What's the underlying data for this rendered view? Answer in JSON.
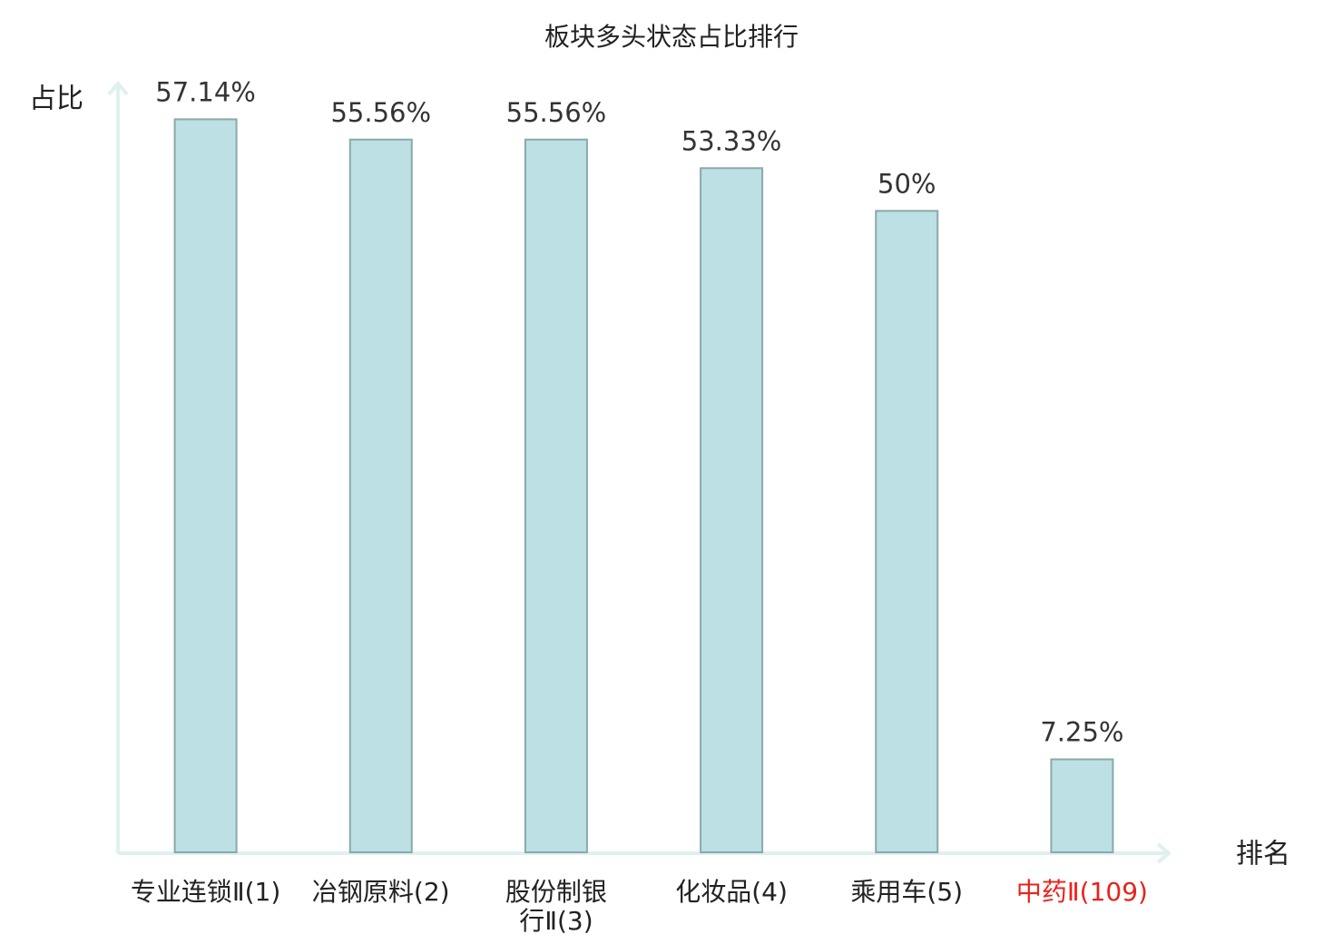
{
  "chart_data": {
    "type": "bar",
    "title": "板块多头状态占比排行",
    "y_label": "占比",
    "x_label": "排名",
    "categories": [
      "专业连锁Ⅱ(1)",
      "冶钢原料(2)",
      "股份制银行Ⅱ(3)",
      "化妆品(4)",
      "乘用车(5)",
      "中药Ⅱ(109)"
    ],
    "values": [
      57.14,
      55.56,
      55.56,
      53.33,
      50,
      7.25
    ],
    "value_labels": [
      "57.14%",
      "55.56%",
      "55.56%",
      "53.33%",
      "50%",
      "7.25%"
    ],
    "color": "#bce0e3",
    "edge_color": "#8aa9aa",
    "label_colors": [
      "#222222",
      "#222222",
      "#222222",
      "#222222",
      "#222222",
      "#e8231a"
    ],
    "ylim": [
      0,
      60
    ]
  }
}
